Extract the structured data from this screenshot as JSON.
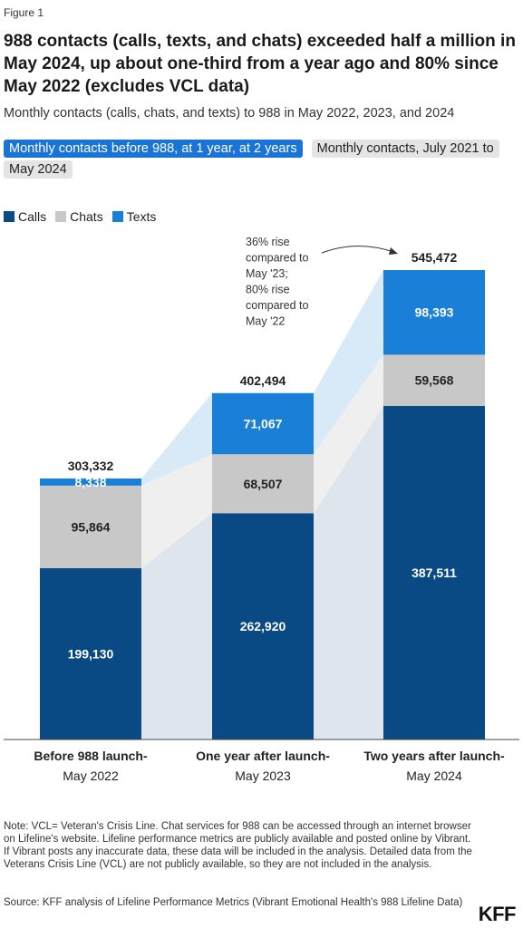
{
  "figure_label": "Figure 1",
  "title": "988 contacts (calls, texts, and chats) exceeded half a million in May 2024, up about one-third from a year ago and 80% since May 2022 (excludes VCL data)",
  "subtitle": "Monthly contacts (calls, chats, and texts) to 988 in May 2022, 2023, and 2024",
  "tabs": [
    {
      "label": "Monthly contacts before 988, at 1 year, at 2 years",
      "active": true
    },
    {
      "label": "Monthly contacts, July 2021 to May 2024",
      "active": false
    }
  ],
  "notes": "Note: VCL= Veteran's Crisis Line. Chat services for 988 can be accessed through an internet browser on Lifeline's website. Lifeline performance metrics are publicly available and posted online by Vibrant. If Vibrant posts any inaccurate data, these data will be included in the analysis. Detailed data from the Veterans Crisis Line (VCL) are not publicly available, so they are not included in the analysis.",
  "source": "Source: KFF analysis of Lifeline Performance Metrics (Vibrant Emotional Health's 988 Lifeline Data)",
  "logo": "KFF",
  "chart_data": {
    "type": "bar",
    "stacked": true,
    "categories": [
      [
        "Before 988 launch-",
        "May 2022"
      ],
      [
        "One year after launch-",
        "May 2023"
      ],
      [
        "Two years after launch-",
        "May 2024"
      ]
    ],
    "series": [
      {
        "name": "Calls",
        "color": "#0a4a84",
        "values": [
          199130,
          262920,
          387511
        ],
        "labels": [
          "199,130",
          "262,920",
          "387,511"
        ]
      },
      {
        "name": "Chats",
        "color": "#c8c8c8",
        "values": [
          95864,
          68507,
          59568
        ],
        "labels": [
          "95,864",
          "68,507",
          "59,568"
        ]
      },
      {
        "name": "Texts",
        "color": "#1a7fd6",
        "values": [
          8338,
          71067,
          98393
        ],
        "labels": [
          "8,338",
          "71,067",
          "98,393"
        ]
      }
    ],
    "totals": [
      303332,
      402494,
      545472
    ],
    "total_labels": [
      "303,332",
      "402,494",
      "545,472"
    ],
    "annotation": [
      "36% rise",
      "compared to",
      "May '23;",
      "80% rise",
      "compared to",
      "May '22"
    ],
    "ylim": [
      0,
      545472
    ],
    "grid": false,
    "legend_position": "top-left"
  }
}
